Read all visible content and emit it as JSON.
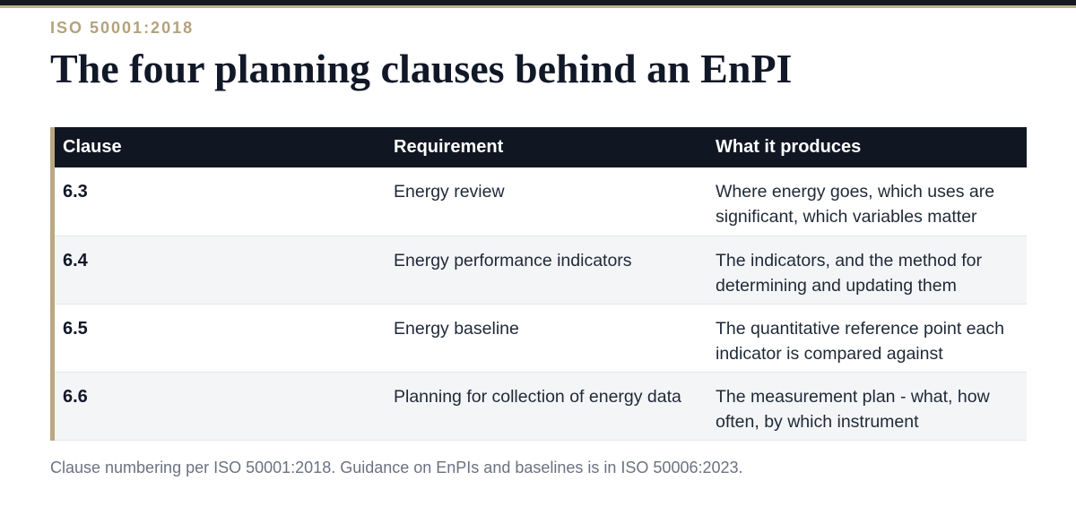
{
  "header": {
    "eyebrow": "ISO 50001:2018",
    "title": "The four planning clauses behind an EnPI"
  },
  "table": {
    "columns": [
      "Clause",
      "Requirement",
      "What it produces"
    ],
    "rows": [
      {
        "clause": "6.3",
        "requirement": "Energy review",
        "produces": "Where energy goes, which uses are significant, which variables matter"
      },
      {
        "clause": "6.4",
        "requirement": "Energy performance indicators",
        "produces": "The indicators, and the method for determining and updating them"
      },
      {
        "clause": "6.5",
        "requirement": "Energy baseline",
        "produces": "The quantitative reference point each indicator is compared against"
      },
      {
        "clause": "6.6",
        "requirement": "Planning for collection of energy data",
        "produces": "The measurement plan - what, how often, by which instrument"
      }
    ]
  },
  "footnote": "Clause numbering per ISO 50001:2018. Guidance on EnPIs and baselines is in ISO 50006:2023.",
  "colors": {
    "accent_gold": "#b9a882",
    "header_dark": "#111722",
    "title_text": "#111827"
  }
}
